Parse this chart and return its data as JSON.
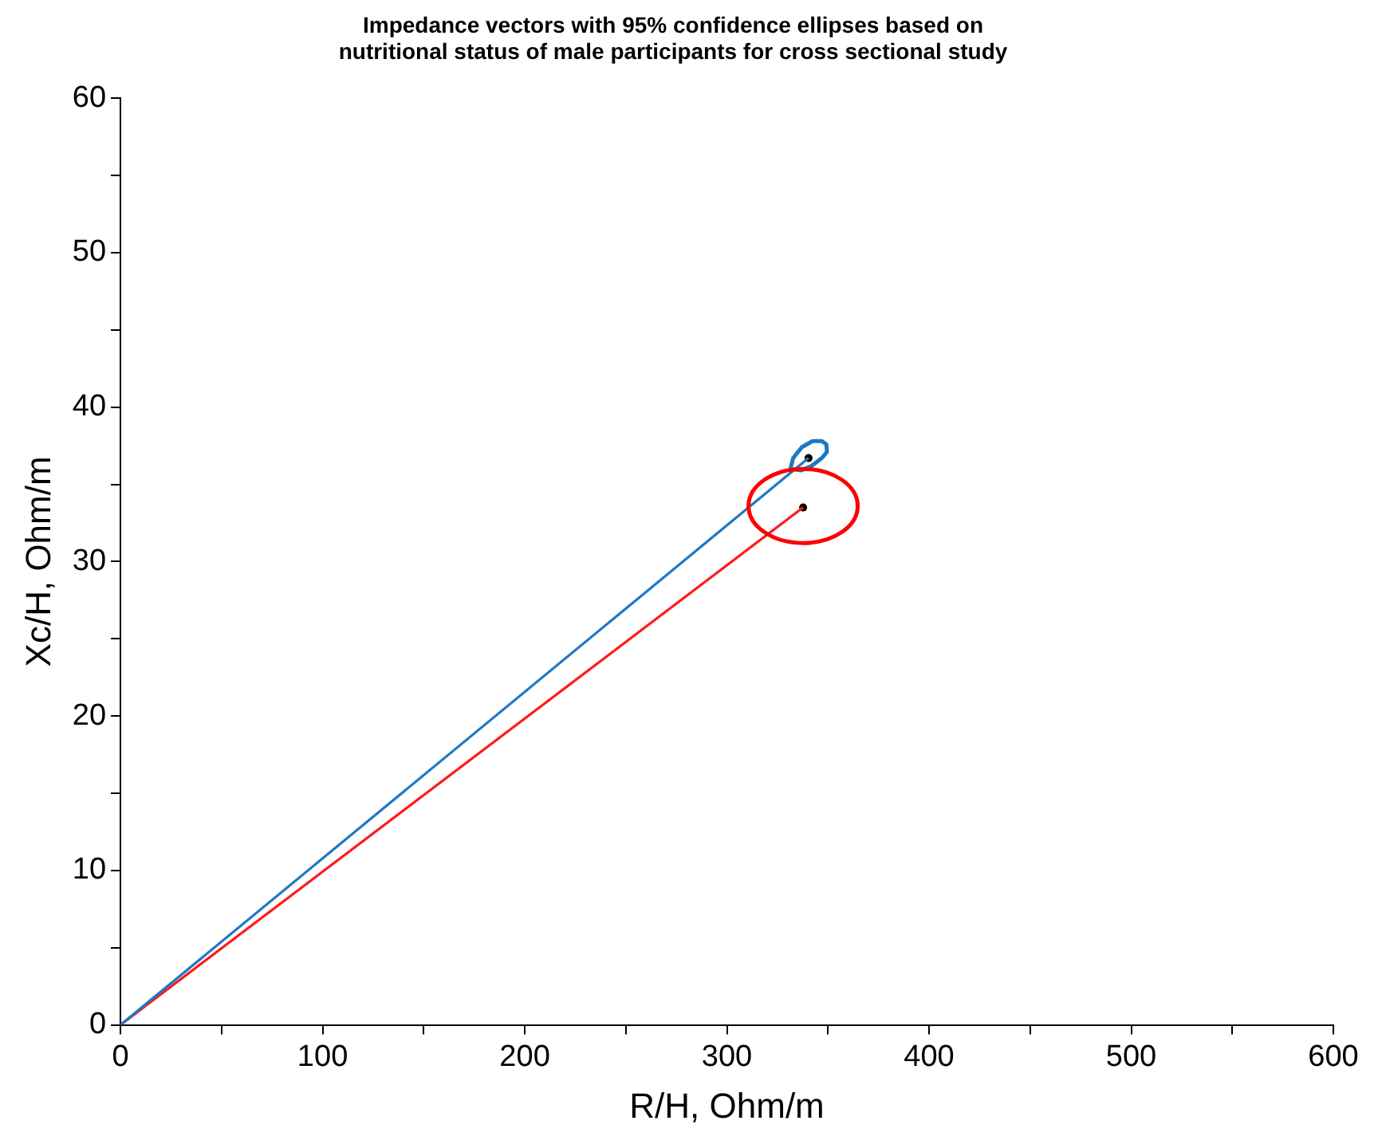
{
  "chart_data": {
    "type": "line",
    "title": "Impedance vectors with 95% confidence ellipses based on\nnutritional status of male participants for cross sectional study",
    "xlabel": "R/H, Ohm/m",
    "ylabel": "Xc/H, Ohm/m",
    "xlim": [
      0,
      600
    ],
    "ylim": [
      0,
      60
    ],
    "xticks": [
      0,
      {
        "value": 50,
        "label": null
      },
      100,
      {
        "value": 150,
        "label": null
      },
      200,
      {
        "value": 250,
        "label": null
      },
      300,
      {
        "value": 350,
        "label": null
      },
      400,
      {
        "value": 450,
        "label": null
      },
      500,
      {
        "value": 550,
        "label": null
      },
      600
    ],
    "yticks": [
      0,
      {
        "value": 5,
        "label": null
      },
      10,
      {
        "value": 15,
        "label": null
      },
      20,
      {
        "value": 25,
        "label": null
      },
      30,
      {
        "value": 35,
        "label": null
      },
      40,
      {
        "value": 45,
        "label": null
      },
      50,
      {
        "value": 55,
        "label": null
      },
      60
    ],
    "grid": false,
    "legend": false,
    "line_style": "solid",
    "series": [
      {
        "type": "line",
        "color": "#1f77c4",
        "x": [
          0,
          340.4
        ],
        "values": [
          0,
          36.7
        ]
      },
      {
        "type": "line",
        "color": "#ff1a1a",
        "x": [
          0,
          337.7
        ],
        "values": [
          0,
          33.5
        ]
      },
      {
        "type": "scatter",
        "marker": "circle",
        "color": "#000000",
        "x": [
          340.4,
          337.7
        ],
        "values": [
          36.7,
          33.5
        ]
      }
    ]
  }
}
